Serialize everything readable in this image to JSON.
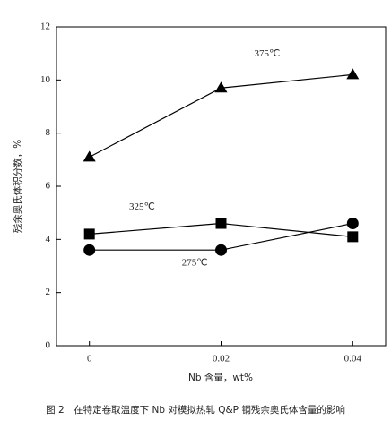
{
  "chart_data": {
    "type": "line",
    "x_label": "Nb 含量，wt%",
    "y_label": "残余奥氏体积分数，%",
    "caption": "图 2　在特定卷取温度下 Nb 对模拟热轧 Q&P 钢残余奥氏体含量的影响",
    "x": [
      0,
      0.02,
      0.04
    ],
    "series": [
      {
        "name": "375℃",
        "color": "#000000",
        "marker": "triangle",
        "values": [
          7.1,
          9.7,
          10.2
        ]
      },
      {
        "name": "325℃",
        "color": "#000000",
        "marker": "square",
        "values": [
          4.2,
          4.6,
          4.1
        ]
      },
      {
        "name": "275℃",
        "color": "#000000",
        "marker": "circle",
        "values": [
          3.6,
          3.6,
          4.6
        ]
      }
    ],
    "xlim": [
      -0.005,
      0.045
    ],
    "xticks": [
      0,
      0.02,
      0.04
    ],
    "ylim": [
      0,
      12
    ],
    "yticks": [
      0,
      2,
      4,
      6,
      8,
      10,
      12
    ]
  }
}
